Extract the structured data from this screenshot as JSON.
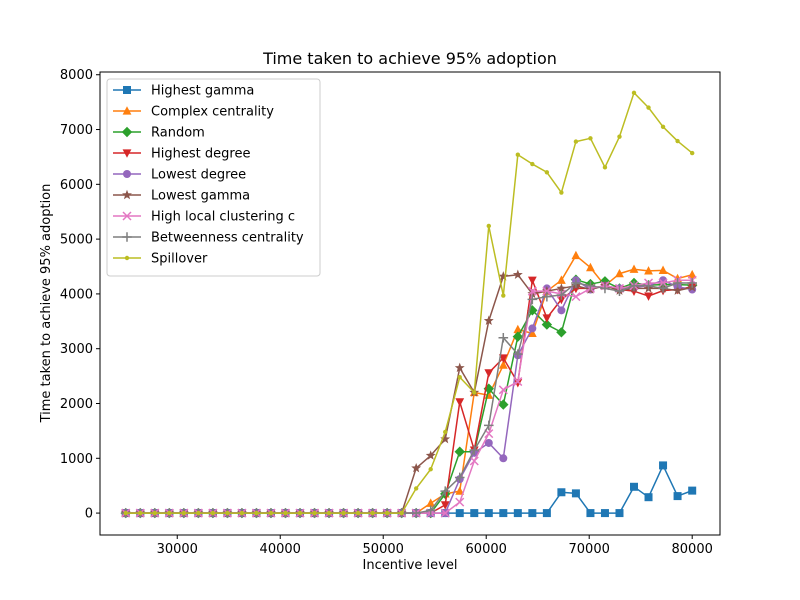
{
  "chart_data": {
    "type": "line",
    "title": "Time taken to achieve 95% adoption",
    "xlabel": "Incentive level",
    "ylabel": "Time taken to achieve 95% adoption",
    "xlim": [
      22500,
      82700
    ],
    "ylim": [
      -400,
      8050
    ],
    "xticks": [
      30000,
      40000,
      50000,
      60000,
      70000,
      80000
    ],
    "yticks": [
      0,
      1000,
      2000,
      3000,
      4000,
      5000,
      6000,
      7000,
      8000
    ],
    "grid": false,
    "legend_position": "top-left",
    "x": [
      25000,
      26410,
      27820,
      29230,
      30640,
      32050,
      33460,
      34870,
      36280,
      37690,
      39100,
      40510,
      41920,
      43330,
      44740,
      46150,
      47560,
      48970,
      50380,
      51790,
      53200,
      54610,
      56020,
      57430,
      58840,
      60250,
      61660,
      63070,
      64480,
      65890,
      67300,
      68710,
      70120,
      71530,
      72940,
      74350,
      75760,
      77170,
      78580,
      80000
    ],
    "series": [
      {
        "name": "Highest gamma",
        "color": "#1f77b4",
        "marker": "square",
        "values": [
          0,
          0,
          0,
          0,
          0,
          0,
          0,
          0,
          0,
          0,
          0,
          0,
          0,
          0,
          0,
          0,
          0,
          0,
          0,
          0,
          0,
          0,
          0,
          0,
          0,
          0,
          0,
          0,
          0,
          0,
          380,
          360,
          0,
          0,
          0,
          480,
          290,
          870,
          310,
          410
        ]
      },
      {
        "name": "Complex centrality",
        "color": "#ff7f0e",
        "marker": "triangle-up",
        "values": [
          0,
          0,
          0,
          0,
          0,
          0,
          0,
          0,
          0,
          0,
          0,
          0,
          0,
          0,
          0,
          0,
          0,
          0,
          0,
          0,
          0,
          180,
          350,
          400,
          2200,
          2150,
          2700,
          3350,
          3280,
          4050,
          4250,
          4700,
          4480,
          4150,
          4370,
          4450,
          4420,
          4430,
          4280,
          4350
        ]
      },
      {
        "name": "Random",
        "color": "#2ca02c",
        "marker": "diamond",
        "values": [
          0,
          0,
          0,
          0,
          0,
          0,
          0,
          0,
          0,
          0,
          0,
          0,
          0,
          0,
          0,
          0,
          0,
          0,
          0,
          0,
          0,
          0,
          350,
          1120,
          1120,
          2270,
          1980,
          3220,
          3700,
          3440,
          3300,
          4260,
          4180,
          4230,
          4100,
          4200,
          4160,
          4170,
          4170,
          4160
        ]
      },
      {
        "name": "Highest degree",
        "color": "#d62728",
        "marker": "triangle-down",
        "values": [
          0,
          0,
          0,
          0,
          0,
          0,
          0,
          0,
          0,
          0,
          0,
          0,
          0,
          0,
          0,
          0,
          0,
          0,
          0,
          0,
          0,
          0,
          150,
          2030,
          1150,
          2560,
          2830,
          2380,
          4250,
          3560,
          3900,
          4100,
          4100,
          4150,
          4080,
          4050,
          3960,
          4060,
          4080,
          4130
        ]
      },
      {
        "name": "Lowest degree",
        "color": "#9467bd",
        "marker": "circle",
        "values": [
          0,
          0,
          0,
          0,
          0,
          0,
          0,
          0,
          0,
          0,
          0,
          0,
          0,
          0,
          0,
          0,
          0,
          0,
          0,
          0,
          0,
          0,
          0,
          620,
          1100,
          1280,
          1000,
          2880,
          3370,
          4100,
          3700,
          4250,
          4080,
          4150,
          4100,
          4120,
          4150,
          4250,
          4130,
          4080
        ]
      },
      {
        "name": "Lowest gamma",
        "color": "#8c564b",
        "marker": "star",
        "values": [
          0,
          0,
          0,
          0,
          0,
          0,
          0,
          0,
          0,
          0,
          0,
          0,
          0,
          0,
          0,
          0,
          0,
          0,
          0,
          0,
          820,
          1050,
          1350,
          2650,
          2200,
          3510,
          4320,
          4350,
          4000,
          4050,
          4100,
          4150,
          4080,
          4150,
          4060,
          4100,
          4100,
          4100,
          4060,
          4120
        ]
      },
      {
        "name": "High local clustering c",
        "color": "#e377c2",
        "marker": "x",
        "values": [
          0,
          0,
          0,
          0,
          0,
          0,
          0,
          0,
          0,
          0,
          0,
          0,
          0,
          0,
          0,
          0,
          0,
          0,
          0,
          0,
          0,
          0,
          0,
          200,
          950,
          1450,
          2250,
          2400,
          4050,
          4050,
          4000,
          3950,
          4100,
          4150,
          4100,
          4150,
          4200,
          4200,
          4250,
          4250
        ]
      },
      {
        "name": "Betweenness centrality",
        "color": "#7f7f7f",
        "marker": "plus",
        "values": [
          0,
          0,
          0,
          0,
          0,
          0,
          0,
          0,
          0,
          0,
          0,
          0,
          0,
          0,
          0,
          0,
          0,
          0,
          0,
          0,
          0,
          50,
          400,
          650,
          1150,
          1600,
          3200,
          2900,
          3900,
          3950,
          3980,
          4200,
          4150,
          4100,
          4050,
          4150,
          4150,
          4100,
          4200,
          4200
        ]
      },
      {
        "name": "Spillover",
        "color": "#bcbd22",
        "marker": "dot",
        "values": [
          0,
          0,
          0,
          0,
          0,
          0,
          0,
          0,
          0,
          0,
          0,
          0,
          0,
          0,
          0,
          0,
          0,
          0,
          0,
          0,
          450,
          800,
          1480,
          2480,
          2200,
          5240,
          3970,
          6540,
          6370,
          6220,
          5850,
          6780,
          6840,
          6310,
          6870,
          7670,
          7400,
          7050,
          6790,
          6570
        ]
      }
    ]
  }
}
